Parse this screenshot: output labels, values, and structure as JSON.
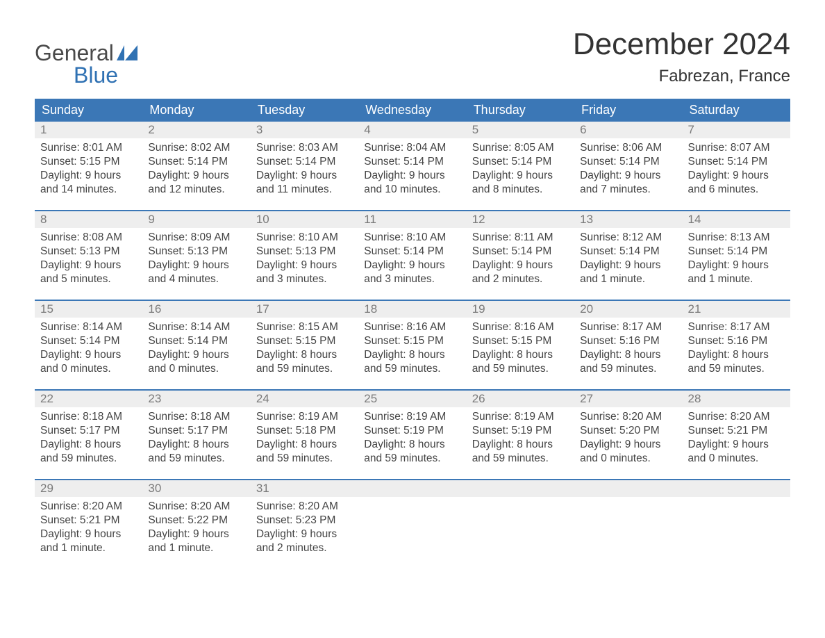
{
  "colors": {
    "header_bg": "#3b77b6",
    "header_text": "#ffffff",
    "daynum_bg": "#eeeeee",
    "daynum_text": "#7a7a7a",
    "body_text": "#444444",
    "logo_gray": "#4a4a4a",
    "logo_blue": "#2f71b3",
    "page_bg": "#ffffff",
    "week_border": "#3b77b6"
  },
  "logo": {
    "line1": "General",
    "line2": "Blue"
  },
  "title": "December 2024",
  "location": "Fabrezan, France",
  "day_headers": [
    "Sunday",
    "Monday",
    "Tuesday",
    "Wednesday",
    "Thursday",
    "Friday",
    "Saturday"
  ],
  "weeks": [
    [
      {
        "n": "1",
        "sunrise": "8:01 AM",
        "sunset": "5:15 PM",
        "dl1": "Daylight: 9 hours",
        "dl2": "and 14 minutes."
      },
      {
        "n": "2",
        "sunrise": "8:02 AM",
        "sunset": "5:14 PM",
        "dl1": "Daylight: 9 hours",
        "dl2": "and 12 minutes."
      },
      {
        "n": "3",
        "sunrise": "8:03 AM",
        "sunset": "5:14 PM",
        "dl1": "Daylight: 9 hours",
        "dl2": "and 11 minutes."
      },
      {
        "n": "4",
        "sunrise": "8:04 AM",
        "sunset": "5:14 PM",
        "dl1": "Daylight: 9 hours",
        "dl2": "and 10 minutes."
      },
      {
        "n": "5",
        "sunrise": "8:05 AM",
        "sunset": "5:14 PM",
        "dl1": "Daylight: 9 hours",
        "dl2": "and 8 minutes."
      },
      {
        "n": "6",
        "sunrise": "8:06 AM",
        "sunset": "5:14 PM",
        "dl1": "Daylight: 9 hours",
        "dl2": "and 7 minutes."
      },
      {
        "n": "7",
        "sunrise": "8:07 AM",
        "sunset": "5:14 PM",
        "dl1": "Daylight: 9 hours",
        "dl2": "and 6 minutes."
      }
    ],
    [
      {
        "n": "8",
        "sunrise": "8:08 AM",
        "sunset": "5:13 PM",
        "dl1": "Daylight: 9 hours",
        "dl2": "and 5 minutes."
      },
      {
        "n": "9",
        "sunrise": "8:09 AM",
        "sunset": "5:13 PM",
        "dl1": "Daylight: 9 hours",
        "dl2": "and 4 minutes."
      },
      {
        "n": "10",
        "sunrise": "8:10 AM",
        "sunset": "5:13 PM",
        "dl1": "Daylight: 9 hours",
        "dl2": "and 3 minutes."
      },
      {
        "n": "11",
        "sunrise": "8:10 AM",
        "sunset": "5:14 PM",
        "dl1": "Daylight: 9 hours",
        "dl2": "and 3 minutes."
      },
      {
        "n": "12",
        "sunrise": "8:11 AM",
        "sunset": "5:14 PM",
        "dl1": "Daylight: 9 hours",
        "dl2": "and 2 minutes."
      },
      {
        "n": "13",
        "sunrise": "8:12 AM",
        "sunset": "5:14 PM",
        "dl1": "Daylight: 9 hours",
        "dl2": "and 1 minute."
      },
      {
        "n": "14",
        "sunrise": "8:13 AM",
        "sunset": "5:14 PM",
        "dl1": "Daylight: 9 hours",
        "dl2": "and 1 minute."
      }
    ],
    [
      {
        "n": "15",
        "sunrise": "8:14 AM",
        "sunset": "5:14 PM",
        "dl1": "Daylight: 9 hours",
        "dl2": "and 0 minutes."
      },
      {
        "n": "16",
        "sunrise": "8:14 AM",
        "sunset": "5:14 PM",
        "dl1": "Daylight: 9 hours",
        "dl2": "and 0 minutes."
      },
      {
        "n": "17",
        "sunrise": "8:15 AM",
        "sunset": "5:15 PM",
        "dl1": "Daylight: 8 hours",
        "dl2": "and 59 minutes."
      },
      {
        "n": "18",
        "sunrise": "8:16 AM",
        "sunset": "5:15 PM",
        "dl1": "Daylight: 8 hours",
        "dl2": "and 59 minutes."
      },
      {
        "n": "19",
        "sunrise": "8:16 AM",
        "sunset": "5:15 PM",
        "dl1": "Daylight: 8 hours",
        "dl2": "and 59 minutes."
      },
      {
        "n": "20",
        "sunrise": "8:17 AM",
        "sunset": "5:16 PM",
        "dl1": "Daylight: 8 hours",
        "dl2": "and 59 minutes."
      },
      {
        "n": "21",
        "sunrise": "8:17 AM",
        "sunset": "5:16 PM",
        "dl1": "Daylight: 8 hours",
        "dl2": "and 59 minutes."
      }
    ],
    [
      {
        "n": "22",
        "sunrise": "8:18 AM",
        "sunset": "5:17 PM",
        "dl1": "Daylight: 8 hours",
        "dl2": "and 59 minutes."
      },
      {
        "n": "23",
        "sunrise": "8:18 AM",
        "sunset": "5:17 PM",
        "dl1": "Daylight: 8 hours",
        "dl2": "and 59 minutes."
      },
      {
        "n": "24",
        "sunrise": "8:19 AM",
        "sunset": "5:18 PM",
        "dl1": "Daylight: 8 hours",
        "dl2": "and 59 minutes."
      },
      {
        "n": "25",
        "sunrise": "8:19 AM",
        "sunset": "5:19 PM",
        "dl1": "Daylight: 8 hours",
        "dl2": "and 59 minutes."
      },
      {
        "n": "26",
        "sunrise": "8:19 AM",
        "sunset": "5:19 PM",
        "dl1": "Daylight: 8 hours",
        "dl2": "and 59 minutes."
      },
      {
        "n": "27",
        "sunrise": "8:20 AM",
        "sunset": "5:20 PM",
        "dl1": "Daylight: 9 hours",
        "dl2": "and 0 minutes."
      },
      {
        "n": "28",
        "sunrise": "8:20 AM",
        "sunset": "5:21 PM",
        "dl1": "Daylight: 9 hours",
        "dl2": "and 0 minutes."
      }
    ],
    [
      {
        "n": "29",
        "sunrise": "8:20 AM",
        "sunset": "5:21 PM",
        "dl1": "Daylight: 9 hours",
        "dl2": "and 1 minute."
      },
      {
        "n": "30",
        "sunrise": "8:20 AM",
        "sunset": "5:22 PM",
        "dl1": "Daylight: 9 hours",
        "dl2": "and 1 minute."
      },
      {
        "n": "31",
        "sunrise": "8:20 AM",
        "sunset": "5:23 PM",
        "dl1": "Daylight: 9 hours",
        "dl2": "and 2 minutes."
      },
      null,
      null,
      null,
      null
    ]
  ],
  "labels": {
    "sunrise": "Sunrise: ",
    "sunset": "Sunset: "
  }
}
